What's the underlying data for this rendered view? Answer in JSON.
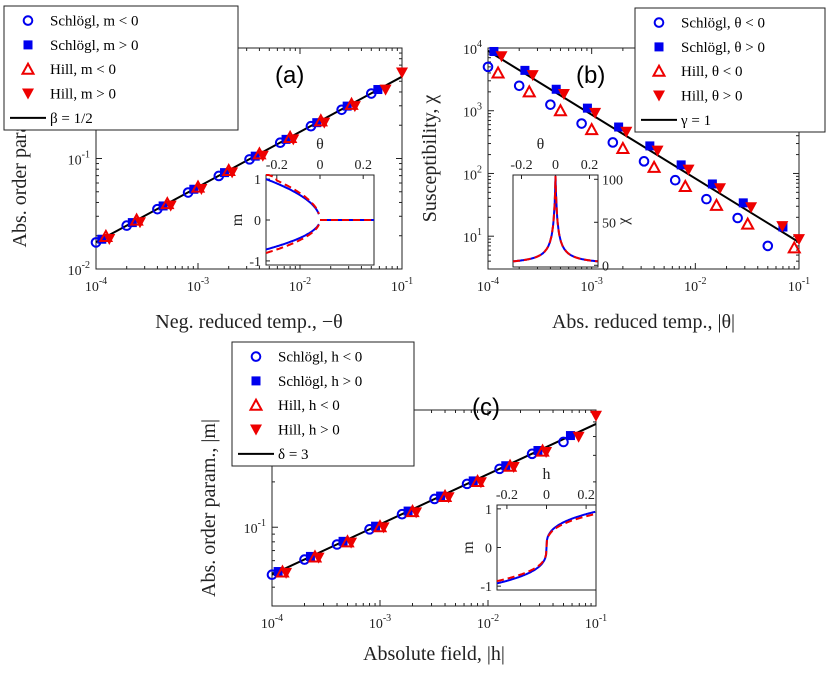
{
  "colors": {
    "schlogl": "#0000ee",
    "hill": "#ee0000",
    "fit": "#000000"
  },
  "chart_data": [
    {
      "type": "scatter",
      "panel_label": "(a)",
      "xlabel": "Neg. reduced temp., −θ",
      "ylabel": "Abs. order param., |m|",
      "xscale": "log",
      "yscale": "log",
      "xlim": [
        0.0001,
        0.1
      ],
      "ylim": [
        0.01,
        1.0
      ],
      "xticks": [
        {
          "v": 0.0001,
          "b": "10",
          "e": "-4"
        },
        {
          "v": 0.001,
          "b": "10",
          "e": "-3"
        },
        {
          "v": 0.01,
          "b": "10",
          "e": "-2"
        },
        {
          "v": 0.1,
          "b": "10",
          "e": "-1"
        }
      ],
      "yticks": [
        {
          "v": 0.01,
          "b": "10",
          "e": "-2"
        },
        {
          "v": 0.1,
          "b": "10",
          "e": "-1"
        }
      ],
      "fit": {
        "label": "β = 1/2",
        "points": [
          [
            0.0001,
            0.0175
          ],
          [
            0.1,
            0.55
          ]
        ]
      },
      "series": [
        {
          "name": "Schlögl, m < 0",
          "marker": "circle",
          "x": [
            0.0001,
            0.0002,
            0.0004,
            0.0008,
            0.0016,
            0.0032,
            0.0064,
            0.0128,
            0.0256,
            0.05
          ],
          "y": [
            0.0174,
            0.0247,
            0.0348,
            0.0492,
            0.0695,
            0.0982,
            0.139,
            0.196,
            0.276,
            0.387
          ]
        },
        {
          "name": "Schlögl, m > 0",
          "marker": "square",
          "x": [
            0.000114,
            0.000227,
            0.000455,
            0.00091,
            0.00182,
            0.00364,
            0.0073,
            0.0146,
            0.029,
            0.058
          ],
          "y": [
            0.0186,
            0.0263,
            0.0372,
            0.0527,
            0.0745,
            0.105,
            0.149,
            0.211,
            0.298,
            0.421
          ]
        },
        {
          "name": "Hill, m < 0",
          "marker": "triangle-up",
          "x": [
            0.000125,
            0.00025,
            0.0005,
            0.001,
            0.002,
            0.004,
            0.008,
            0.016,
            0.032
          ],
          "y": [
            0.0197,
            0.0277,
            0.039,
            0.0551,
            0.0778,
            0.11,
            0.155,
            0.219,
            0.309
          ]
        },
        {
          "name": "Hill, m > 0",
          "marker": "triangle-down",
          "x": [
            0.000135,
            0.00027,
            0.00054,
            0.00108,
            0.00216,
            0.00432,
            0.0086,
            0.0173,
            0.0345,
            0.069,
            0.1
          ],
          "y": [
            0.0187,
            0.0265,
            0.0375,
            0.053,
            0.0749,
            0.106,
            0.149,
            0.211,
            0.298,
            0.42,
            0.6
          ]
        }
      ],
      "inset": {
        "type": "line",
        "xlabel": "θ",
        "ylabel": "m",
        "xlim": [
          -0.25,
          0.25
        ],
        "ylim": [
          -1.1,
          1.1
        ],
        "xticks": [
          {
            "v": -0.2,
            "t": "-0.2"
          },
          {
            "v": 0,
            "t": "0"
          },
          {
            "v": 0.2,
            "t": "0.2"
          }
        ],
        "yticks": [
          {
            "v": 1,
            "t": "1"
          },
          {
            "v": 0,
            "t": "0"
          },
          {
            "v": -1,
            "t": "-1"
          }
        ],
        "shape": "pitchfork"
      }
    },
    {
      "type": "scatter",
      "panel_label": "(b)",
      "xlabel": "Abs. reduced temp., |θ|",
      "ylabel": "Susceptibility, χ",
      "xscale": "log",
      "yscale": "log",
      "xlim": [
        0.0001,
        0.1
      ],
      "ylim": [
        3,
        10000
      ],
      "xticks": [
        {
          "v": 0.0001,
          "b": "10",
          "e": "-4"
        },
        {
          "v": 0.001,
          "b": "10",
          "e": "-3"
        },
        {
          "v": 0.01,
          "b": "10",
          "e": "-2"
        },
        {
          "v": 0.1,
          "b": "10",
          "e": "-1"
        }
      ],
      "yticks": [
        {
          "v": 10,
          "b": "10",
          "e": "1"
        },
        {
          "v": 100,
          "b": "10",
          "e": "2"
        },
        {
          "v": 1000,
          "b": "10",
          "e": "3"
        },
        {
          "v": 10000,
          "b": "10",
          "e": "4"
        }
      ],
      "fit": {
        "label": "γ = 1",
        "points": [
          [
            0.0001,
            9000
          ],
          [
            0.1,
            8
          ]
        ]
      },
      "series": [
        {
          "name": "Schlögl, θ < 0",
          "marker": "circle",
          "x": [
            0.0001,
            0.0002,
            0.0004,
            0.0008,
            0.0016,
            0.0032,
            0.0064,
            0.0128,
            0.0256,
            0.05
          ],
          "y": [
            5000,
            2500,
            1250,
            625,
            312,
            156,
            78,
            39,
            19.5,
            7
          ]
        },
        {
          "name": "Schlögl, θ > 0",
          "marker": "square",
          "x": [
            0.000114,
            0.000227,
            0.000455,
            0.00091,
            0.00182,
            0.00364,
            0.0073,
            0.0146,
            0.029,
            0.07
          ],
          "y": [
            8800,
            4400,
            2200,
            1100,
            550,
            275,
            137,
            68,
            34,
            14
          ]
        },
        {
          "name": "Hill, θ < 0",
          "marker": "triangle-up",
          "x": [
            0.000125,
            0.00025,
            0.0005,
            0.001,
            0.002,
            0.004,
            0.008,
            0.016,
            0.032,
            0.09
          ],
          "y": [
            4000,
            2000,
            1000,
            500,
            250,
            125,
            62,
            31,
            15.6,
            6.5
          ]
        },
        {
          "name": "Hill, θ > 0",
          "marker": "triangle-down",
          "x": [
            0.000135,
            0.00027,
            0.00054,
            0.00108,
            0.00216,
            0.00432,
            0.0086,
            0.0173,
            0.0345,
            0.069,
            0.1
          ],
          "y": [
            7400,
            3700,
            1850,
            925,
            462,
            231,
            115,
            58,
            29,
            14.5,
            9
          ]
        }
      ],
      "inset": {
        "type": "line",
        "xlabel": "θ",
        "ylabel": "χ",
        "xlim": [
          -0.25,
          0.25
        ],
        "ylim": [
          -2,
          105
        ],
        "xticks": [
          {
            "v": -0.2,
            "t": "-0.2"
          },
          {
            "v": 0,
            "t": "0"
          },
          {
            "v": 0.2,
            "t": "0.2"
          }
        ],
        "yticks": [
          {
            "v": 100,
            "t": "100"
          },
          {
            "v": 50,
            "t": "50"
          },
          {
            "v": 0,
            "t": "0"
          }
        ],
        "shape": "peak"
      }
    },
    {
      "type": "scatter",
      "panel_label": "(c)",
      "xlabel": "Absolute field, |h|",
      "ylabel": "Abs. order param., |m|",
      "xscale": "log",
      "yscale": "log",
      "xlim": [
        0.0001,
        0.1
      ],
      "ylim": [
        0.03,
        0.6
      ],
      "xticks": [
        {
          "v": 0.0001,
          "b": "10",
          "e": "-4"
        },
        {
          "v": 0.001,
          "b": "10",
          "e": "-3"
        },
        {
          "v": 0.01,
          "b": "10",
          "e": "-2"
        },
        {
          "v": 0.1,
          "b": "10",
          "e": "-1"
        }
      ],
      "yticks": [
        {
          "v": 0.1,
          "b": "10",
          "e": "-1"
        }
      ],
      "fit": {
        "label": "δ = 3",
        "points": [
          [
            0.0001,
            0.0485
          ],
          [
            0.1,
            0.485
          ]
        ]
      },
      "series": [
        {
          "name": "Schlögl, h < 0",
          "marker": "circle",
          "x": [
            0.0001,
            0.0002,
            0.0004,
            0.0008,
            0.0016,
            0.0032,
            0.0064,
            0.0128,
            0.0256,
            0.05
          ],
          "y": [
            0.0484,
            0.061,
            0.0768,
            0.0968,
            0.122,
            0.154,
            0.194,
            0.244,
            0.307,
            0.368
          ]
        },
        {
          "name": "Schlögl, h > 0",
          "marker": "square",
          "x": [
            0.000114,
            0.000227,
            0.000455,
            0.00091,
            0.00182,
            0.00364,
            0.0073,
            0.0146,
            0.029,
            0.058
          ],
          "y": [
            0.0508,
            0.064,
            0.0806,
            0.1016,
            0.128,
            0.161,
            0.203,
            0.256,
            0.323,
            0.406
          ]
        },
        {
          "name": "Hill, h < 0",
          "marker": "triangle-up",
          "x": [
            0.000125,
            0.00025,
            0.0005,
            0.001,
            0.002,
            0.004,
            0.008,
            0.016,
            0.032
          ],
          "y": [
            0.0504,
            0.0635,
            0.08,
            0.1008,
            0.127,
            0.16,
            0.201,
            0.254,
            0.32
          ]
        },
        {
          "name": "Hill, h > 0",
          "marker": "triangle-down",
          "x": [
            0.000135,
            0.00027,
            0.00054,
            0.00108,
            0.00216,
            0.00432,
            0.0086,
            0.0173,
            0.0345,
            0.069,
            0.1
          ],
          "y": [
            0.0498,
            0.0628,
            0.0791,
            0.0997,
            0.1256,
            0.158,
            0.199,
            0.251,
            0.316,
            0.399,
            0.55
          ]
        }
      ],
      "inset": {
        "type": "line",
        "xlabel": "h",
        "ylabel": "m",
        "xlim": [
          -0.25,
          0.25
        ],
        "ylim": [
          -1.1,
          1.1
        ],
        "xticks": [
          {
            "v": -0.2,
            "t": "-0.2"
          },
          {
            "v": 0,
            "t": "0"
          },
          {
            "v": 0.2,
            "t": "0.2"
          }
        ],
        "yticks": [
          {
            "v": 1,
            "t": "1"
          },
          {
            "v": 0,
            "t": "0"
          },
          {
            "v": -1,
            "t": "-1"
          }
        ],
        "shape": "cuberoot"
      }
    }
  ]
}
